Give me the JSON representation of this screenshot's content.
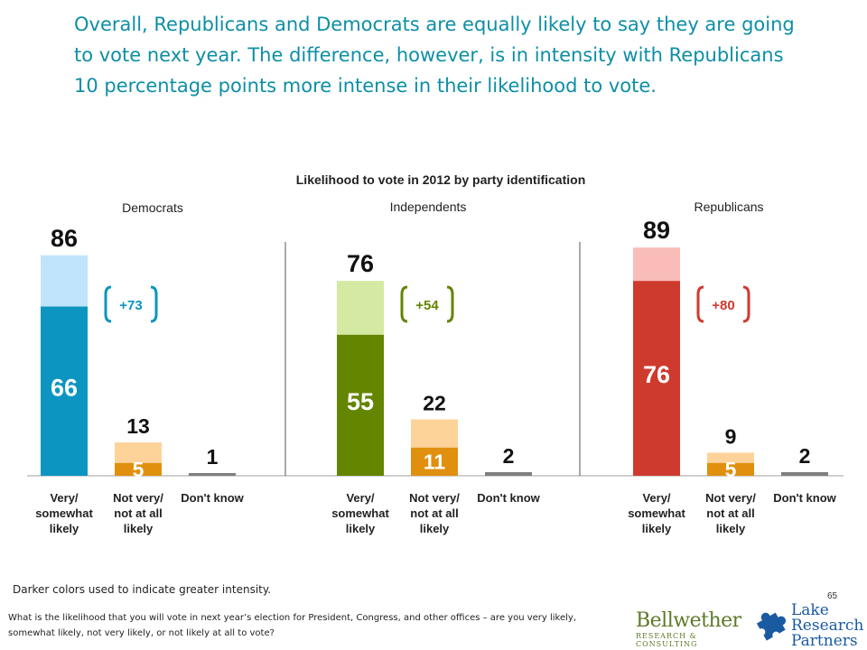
{
  "headline": "Overall, Republicans and Democrats are equally likely to say they are going to vote next year.  The difference, however, is in intensity with Republicans 10 percentage points more intense in their likelihood to vote.",
  "footnote": "Darker colors used to indicate greater intensity.",
  "page_number": "65",
  "question": "What is the likelihood that you will vote in next year’s election for President, Congress, and other offices – are you very likely, somewhat likely, not very likely, or not likely at all to vote?",
  "logos": {
    "bellwether_name": "Bellwether",
    "bellwether_tag": "RESEARCH & CONSULTING",
    "lake_name": "Lake Research Partners"
  },
  "chart_data": {
    "type": "bar",
    "title": "Likelihood to vote in 2012 by party identification",
    "categories": [
      "Very/ somewhat likely",
      "Not very/ not at all likely",
      "Don't know"
    ],
    "groups": [
      {
        "name": "Democrats",
        "colors": {
          "dark": "#0b95c0",
          "light": "#bfe4fb",
          "mid_dark": "#e0900e",
          "mid_light": "#fdd39a",
          "dk": "#7f7f7f"
        },
        "bars": [
          {
            "category": "Very/ somewhat likely",
            "total": 86,
            "intense": 66
          },
          {
            "category": "Not very/ not at all likely",
            "total": 13,
            "intense": 5
          },
          {
            "category": "Don't know",
            "total": 1
          }
        ],
        "net": "+73"
      },
      {
        "name": "Independents",
        "colors": {
          "dark": "#638500",
          "light": "#d4eaa2",
          "mid_dark": "#e0900e",
          "mid_light": "#fdd39a",
          "dk": "#7f7f7f"
        },
        "bars": [
          {
            "category": "Very/ somewhat likely",
            "total": 76,
            "intense": 55
          },
          {
            "category": "Not very/ not at all likely",
            "total": 22,
            "intense": 11
          },
          {
            "category": "Don't know",
            "total": 2
          }
        ],
        "net": "+54"
      },
      {
        "name": "Republicans",
        "colors": {
          "dark": "#cf3a2e",
          "light": "#f9bcb8",
          "mid_dark": "#e0900e",
          "mid_light": "#fdd39a",
          "dk": "#7f7f7f"
        },
        "bars": [
          {
            "category": "Very/ somewhat likely",
            "total": 89,
            "intense": 76
          },
          {
            "category": "Not very/ not at all likely",
            "total": 9,
            "intense": 5
          },
          {
            "category": "Don't know",
            "total": 2
          }
        ],
        "net": "+80"
      }
    ],
    "category_labels": [
      [
        "Very/",
        "somewhat",
        "likely"
      ],
      [
        "Not very/",
        "not at all",
        "likely"
      ],
      [
        "Don't know"
      ]
    ],
    "net_colors": [
      "#0b95c0",
      "#638500",
      "#cf3a2e"
    ],
    "ylim": [
      0,
      100
    ],
    "grid": false
  }
}
